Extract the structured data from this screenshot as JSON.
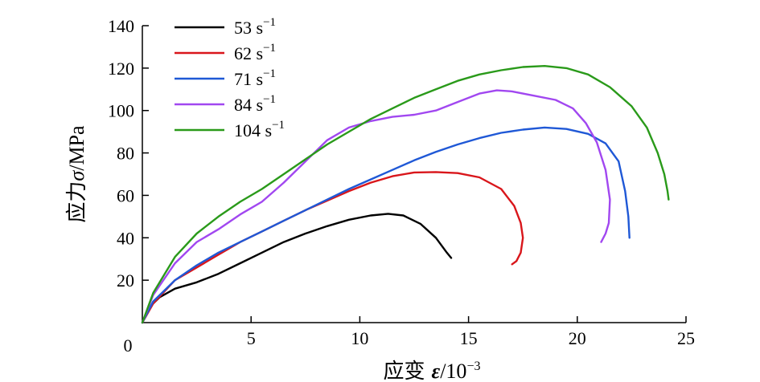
{
  "chart_data": {
    "type": "line",
    "xlabel_cjk": "应变",
    "xlabel_symbol": "ε",
    "xlabel_unit": "/10",
    "xlabel_exp": "−3",
    "ylabel_cjk": "应力",
    "ylabel_symbol": "σ",
    "ylabel_unit": "/MPa",
    "xlim": [
      0,
      25
    ],
    "ylim": [
      0,
      140
    ],
    "origin_label": "0",
    "xticks": [
      5,
      10,
      15,
      20,
      25
    ],
    "yticks": [
      20,
      40,
      60,
      80,
      100,
      120,
      140
    ],
    "grid": false,
    "legend_position": "top-left",
    "series": [
      {
        "name": "53 s",
        "name_exp": "−1",
        "color": "#000000",
        "x": [
          0,
          0.3,
          0.8,
          1.5,
          2.5,
          3.5,
          4.5,
          5.5,
          6.5,
          7.5,
          8.5,
          9.5,
          10.5,
          11.3,
          12.0,
          12.8,
          13.5,
          14.0,
          14.2
        ],
        "y": [
          0,
          7,
          12,
          16,
          19,
          23,
          28,
          33,
          38,
          42,
          45.5,
          48.5,
          50.5,
          51.3,
          50.5,
          46.5,
          40,
          33,
          30.5
        ]
      },
      {
        "name": "62 s",
        "name_exp": "−1",
        "color": "#d9161b",
        "x": [
          0,
          0.5,
          1.5,
          2.5,
          3.5,
          4.5,
          5.5,
          6.5,
          7.5,
          8.5,
          9.5,
          10.5,
          11.5,
          12.5,
          13.5,
          14.5,
          15.5,
          16.5,
          17.1,
          17.4,
          17.5,
          17.4,
          17.2,
          17.0
        ],
        "y": [
          0,
          9,
          20,
          26,
          32,
          38,
          43,
          48,
          53,
          57.5,
          62,
          66,
          69,
          70.8,
          71,
          70.5,
          68.5,
          63,
          55,
          47,
          40,
          33,
          29,
          27.5
        ]
      },
      {
        "name": "71 s",
        "name_exp": "−1",
        "color": "#1f58d6",
        "x": [
          0,
          0.5,
          1.5,
          2.5,
          3.5,
          4.5,
          5.5,
          6.5,
          7.5,
          8.5,
          9.5,
          10.5,
          11.5,
          12.5,
          13.5,
          14.5,
          15.5,
          16.5,
          17.5,
          18.5,
          19.5,
          20.5,
          21.3,
          21.9,
          22.2,
          22.35,
          22.4
        ],
        "y": [
          0,
          10,
          20,
          27,
          33,
          38,
          43,
          48,
          53,
          58,
          63,
          67.5,
          72,
          76.5,
          80.5,
          84,
          87,
          89.5,
          91,
          92,
          91.3,
          89,
          84.5,
          76,
          62,
          50,
          40
        ]
      },
      {
        "name": "84 s",
        "name_exp": "−1",
        "color": "#a147f0",
        "x": [
          0,
          0.5,
          1.5,
          2.5,
          3.5,
          4.5,
          5.5,
          6.5,
          7.5,
          8.5,
          9.5,
          10.5,
          11.5,
          12.5,
          13.5,
          14.5,
          15.5,
          16.3,
          17.0,
          18.0,
          19.0,
          19.8,
          20.4,
          20.9,
          21.3,
          21.5,
          21.45,
          21.3,
          21.1
        ],
        "y": [
          0,
          13,
          28,
          38,
          44,
          51,
          57,
          66,
          76,
          86,
          92,
          95,
          97,
          98,
          100,
          104,
          108,
          109.5,
          109,
          107,
          105,
          101,
          94,
          85,
          72,
          58,
          47,
          42,
          38
        ]
      },
      {
        "name": "104 s",
        "name_exp": "−1",
        "color": "#2a9a1a",
        "x": [
          0,
          0.5,
          1.5,
          2.5,
          3.5,
          4.5,
          5.5,
          6.5,
          7.5,
          8.5,
          9.5,
          10.5,
          11.5,
          12.5,
          13.5,
          14.5,
          15.5,
          16.5,
          17.5,
          18.5,
          19.5,
          20.5,
          21.5,
          22.5,
          23.2,
          23.7,
          24.0,
          24.15,
          24.2
        ],
        "y": [
          0,
          14,
          31,
          42,
          50,
          57,
          63,
          70,
          77,
          84,
          90,
          96,
          101,
          106,
          110,
          114,
          117,
          119,
          120.5,
          121,
          120,
          117,
          111,
          102,
          92,
          80,
          70,
          62,
          58
        ]
      }
    ]
  }
}
